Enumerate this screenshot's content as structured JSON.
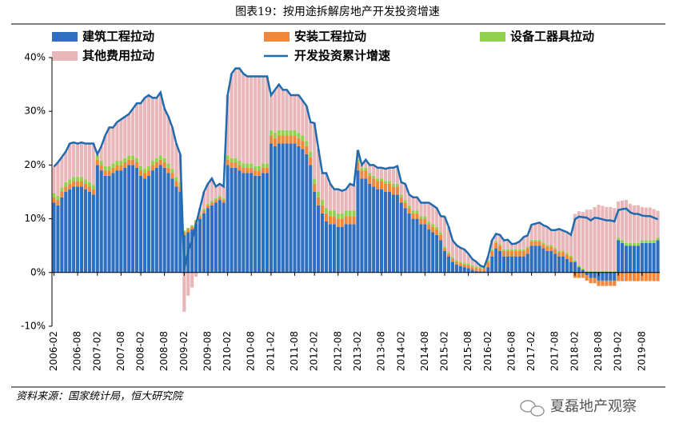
{
  "chart_data": {
    "type": "bar",
    "stacked": true,
    "title": "图表19：按用途拆解房地产开发投资增速",
    "source": "资料来源：国家统计局，恒大研究院",
    "watermark": "夏磊地产观察",
    "categories": [
      "2006-02",
      null,
      null,
      null,
      null,
      null,
      "2006-08",
      null,
      null,
      null,
      null,
      "2007-02",
      null,
      null,
      null,
      null,
      null,
      "2007-08",
      null,
      null,
      null,
      null,
      "2008-02",
      null,
      null,
      null,
      null,
      null,
      "2008-08",
      null,
      null,
      null,
      null,
      "2009-02",
      null,
      null,
      null,
      null,
      null,
      "2009-08",
      null,
      null,
      null,
      null,
      "2010-02",
      null,
      null,
      null,
      null,
      null,
      "2010-08",
      null,
      null,
      null,
      null,
      "2011-02",
      null,
      null,
      null,
      null,
      null,
      "2011-08",
      null,
      null,
      null,
      null,
      "2012-02",
      null,
      null,
      null,
      null,
      null,
      "2012-08",
      null,
      null,
      null,
      null,
      "2013-02",
      null,
      null,
      null,
      null,
      null,
      "2013-08",
      null,
      null,
      null,
      null,
      "2014-02",
      null,
      null,
      null,
      null,
      null,
      "2014-08",
      null,
      null,
      null,
      null,
      "2015-02",
      null,
      null,
      null,
      null,
      null,
      "2015-08",
      null,
      null,
      null,
      null,
      "2016-02",
      null,
      null,
      null,
      null,
      null,
      "2016-08",
      null,
      null,
      null,
      null,
      "2017-02",
      null,
      null,
      null,
      null,
      null,
      "2017-08",
      null,
      null,
      null,
      null,
      "2018-02",
      null,
      null,
      null,
      null,
      null,
      "2018-08",
      null,
      null,
      null,
      null,
      "2019-02",
      null,
      null,
      null,
      null,
      null,
      "2019-08",
      null,
      null,
      null,
      null
    ],
    "ylim": [
      -10,
      40
    ],
    "yticks": [
      {
        "value": -10,
        "label": "-10%"
      },
      {
        "value": 0,
        "label": "0%"
      },
      {
        "value": 10,
        "label": "10%"
      },
      {
        "value": 20,
        "label": "20%"
      },
      {
        "value": 30,
        "label": "30%"
      },
      {
        "value": 40,
        "label": "40%"
      }
    ],
    "grid": false,
    "series": [
      {
        "name": "建筑工程拉动",
        "type": "bar",
        "color": "#2f6fc0",
        "values": [
          13,
          12.5,
          14,
          15,
          15.5,
          16,
          16,
          16,
          15.5,
          15,
          14.5,
          20,
          19,
          18,
          18,
          18.5,
          19,
          19,
          19.5,
          20,
          20,
          19.5,
          18,
          17.5,
          18,
          19,
          19.5,
          20,
          19.5,
          18.5,
          17.5,
          16,
          15,
          7,
          7.5,
          8,
          9,
          10,
          11,
          12,
          12.5,
          13,
          13.5,
          13,
          20,
          19.5,
          19.5,
          19,
          18.5,
          18.5,
          18.5,
          18,
          18,
          18.5,
          18.5,
          24,
          23.5,
          24,
          24,
          24,
          24,
          24,
          23.5,
          23,
          22,
          20,
          15,
          12.5,
          11,
          9.5,
          9,
          9,
          8.5,
          8.5,
          9,
          9,
          9,
          19,
          17.5,
          17.5,
          16.5,
          16,
          15.5,
          15.5,
          15,
          15,
          14.5,
          14.5,
          13,
          12,
          11,
          10,
          10,
          9,
          9,
          8,
          7.5,
          7,
          6,
          4,
          3,
          2,
          1.5,
          1.2,
          1,
          0.8,
          0.5,
          0.3,
          0.2,
          0.2,
          1,
          3,
          4.5,
          4,
          3,
          3,
          3,
          3,
          3,
          3,
          3.5,
          5,
          5,
          5,
          4.5,
          4,
          4,
          3.5,
          3,
          3,
          2.5,
          2,
          2,
          1,
          0.5,
          -0.5,
          -1,
          -1,
          -1.5,
          -1.5,
          -1.5,
          -1.5,
          -1.5,
          6,
          5.5,
          5,
          5,
          5,
          5,
          5.5,
          5.5,
          5.5,
          5.5,
          6
        ]
      },
      {
        "name": "安装工程拉动",
        "type": "bar",
        "color": "#f0873a",
        "values": [
          1,
          1,
          1,
          1,
          1,
          1,
          1,
          1,
          1,
          1,
          1,
          1,
          1,
          1,
          1,
          1,
          1,
          1,
          1,
          1,
          1,
          1,
          1,
          1,
          1,
          1,
          1,
          1,
          1,
          1,
          1,
          1,
          1,
          0.5,
          0.5,
          0.5,
          0.5,
          0.5,
          0.5,
          0.5,
          0.5,
          0.5,
          0.5,
          0.5,
          1,
          1,
          1,
          1,
          1,
          1,
          1,
          1,
          1,
          1,
          1,
          1.5,
          1.5,
          1.5,
          1.5,
          1.5,
          1.5,
          1.5,
          1.5,
          1.5,
          1.5,
          1.5,
          1.5,
          1.5,
          1.5,
          1.5,
          1.5,
          1.5,
          1.5,
          1.5,
          1.5,
          1.5,
          1.5,
          1.5,
          1.5,
          1.5,
          1.5,
          1.5,
          1.5,
          1.5,
          1.5,
          1.5,
          1.5,
          1.5,
          1,
          1,
          1,
          1,
          1,
          1,
          1,
          1,
          1,
          1,
          1,
          0.5,
          0.5,
          0.5,
          0.5,
          0.5,
          0.5,
          0.5,
          0.5,
          0.5,
          0.5,
          0.5,
          1,
          1,
          1,
          1,
          1,
          1,
          1,
          1,
          1,
          1,
          1,
          0.8,
          0.8,
          0.8,
          0.8,
          0.8,
          0.8,
          0.8,
          0.8,
          0.8,
          0.8,
          0.8,
          -1,
          -1,
          -1,
          -1,
          -1,
          -1,
          -1,
          -1,
          -1,
          -1,
          -1,
          -1.6,
          -1.6,
          -1.6,
          -1.6,
          -1.6,
          -1.6,
          -1.6,
          -1.6,
          -1.6,
          -1.6,
          -1.6
        ]
      },
      {
        "name": "设备工器具拉动",
        "type": "bar",
        "color": "#92d050",
        "values": [
          0.8,
          0.8,
          0.8,
          0.8,
          0.8,
          0.8,
          0.8,
          0.8,
          0.8,
          0.8,
          0.8,
          0.8,
          0.8,
          0.8,
          0.8,
          0.8,
          0.8,
          0.8,
          0.8,
          0.8,
          0.8,
          0.8,
          0.8,
          0.8,
          0.8,
          0.8,
          0.8,
          0.8,
          0.8,
          0.8,
          0.8,
          0.8,
          0.8,
          0.3,
          0.3,
          0.3,
          0.3,
          0.3,
          0.3,
          0.3,
          0.3,
          0.3,
          0.3,
          0.3,
          0.8,
          0.8,
          0.8,
          0.8,
          0.8,
          0.8,
          0.8,
          0.8,
          0.8,
          0.8,
          0.8,
          1,
          1,
          1,
          1,
          1,
          1,
          1,
          1,
          1,
          1,
          1,
          1,
          1,
          1,
          1,
          1,
          1,
          1,
          1,
          1,
          1,
          1,
          0.5,
          0.5,
          0.5,
          0.5,
          0.5,
          0.5,
          0.5,
          0.5,
          0.5,
          0.5,
          0.5,
          0.5,
          0.5,
          0.5,
          0.5,
          0.5,
          0.5,
          0.5,
          0.5,
          0.5,
          0.5,
          0.5,
          0.3,
          0.3,
          0.3,
          0.3,
          0.3,
          0.3,
          0.3,
          0.3,
          0.3,
          0.3,
          0.3,
          0.3,
          0.3,
          0.3,
          0.3,
          0.3,
          0.3,
          0.3,
          0.3,
          0.3,
          0.3,
          0.3,
          0.3,
          0.3,
          0.3,
          0.3,
          0.3,
          0.3,
          0.3,
          0.3,
          0.3,
          0.3,
          0.3,
          0.3,
          0.3,
          0.3,
          0.3,
          0.3,
          0.3,
          0.3,
          0.3,
          0.3,
          0.3,
          0.3,
          0.5,
          0.5,
          0.5,
          0.5,
          0.5,
          0.5,
          0.5,
          0.5,
          0.5,
          0.5,
          0.5
        ]
      },
      {
        "name": "其他费用拉动",
        "type": "bar",
        "color": "#e9b6b9",
        "values": [
          4.9,
          6.2,
          5.7,
          5.7,
          6.7,
          6.4,
          6.2,
          6.4,
          6.7,
          7.2,
          7.7,
          0.2,
          2.7,
          5.7,
          7.2,
          6.7,
          7.2,
          7.7,
          7.7,
          7.7,
          8.7,
          10.2,
          11.7,
          13.2,
          13.2,
          11.7,
          11.2,
          11.7,
          9.2,
          8.7,
          7.7,
          6.2,
          5.2,
          -7.3,
          -4.3,
          -2.8,
          -0.8,
          1.2,
          3.2,
          3.7,
          4.2,
          2.2,
          2.2,
          2.2,
          11.2,
          15.7,
          16.7,
          17.2,
          16.7,
          16.2,
          16.2,
          16.7,
          16.7,
          16.2,
          16.2,
          6.5,
          8,
          8.5,
          7.5,
          7.5,
          6.5,
          6.5,
          7,
          6.5,
          6.5,
          5.5,
          10.3,
          8,
          5,
          6.5,
          5,
          4,
          4.5,
          4.2,
          4,
          5,
          4.7,
          1.8,
          0.5,
          1.5,
          1.5,
          2,
          2,
          2,
          2.3,
          2.5,
          3,
          3.3,
          2.3,
          3,
          2,
          2.5,
          2.5,
          2.5,
          2.5,
          3.5,
          3.5,
          3.5,
          3,
          5.6,
          4.7,
          3.2,
          2.8,
          2.6,
          2.5,
          1.9,
          1.2,
          0.9,
          0.3,
          0,
          0.7,
          1.7,
          1.4,
          1.7,
          1.7,
          1.8,
          1,
          1.1,
          1.5,
          2.3,
          2.1,
          2.8,
          3,
          3.2,
          3.2,
          3.4,
          2.8,
          3.3,
          4,
          3.7,
          3.9,
          3.9,
          8.6,
          10.1,
          10.5,
          11.4,
          11.4,
          11.9,
          12.3,
          12.1,
          11.9,
          11.9,
          11.7,
          6.7,
          7.4,
          8,
          7.3,
          7,
          7,
          6.2,
          6.1,
          6.1,
          5.8,
          5
        ]
      },
      {
        "name": "开发投资累计增速",
        "type": "line",
        "color": "#1f6bb0",
        "values": [
          19.7,
          20.5,
          21.5,
          22.5,
          24,
          24.2,
          24,
          24.2,
          24,
          24,
          24,
          22,
          23.5,
          25.5,
          27,
          27,
          28,
          28.5,
          29,
          29.5,
          30.5,
          31.5,
          31.5,
          32.5,
          33,
          32.5,
          32.5,
          33.5,
          30.5,
          29,
          27,
          24,
          22,
          0.5,
          4,
          6,
          9,
          12,
          15,
          16.5,
          17.5,
          16,
          16.5,
          16,
          33,
          37,
          38,
          38,
          37,
          36.5,
          36.5,
          36.5,
          36.5,
          36.5,
          36.5,
          33,
          34,
          35,
          34,
          34,
          33,
          33,
          33,
          32,
          31,
          28,
          27.8,
          23,
          18.5,
          18.5,
          16.5,
          15.5,
          15.5,
          15.2,
          15.5,
          16.5,
          16.2,
          22.8,
          20,
          21,
          20,
          20,
          19.5,
          19.5,
          19.3,
          19.5,
          19.5,
          19.8,
          16.8,
          16.5,
          14.5,
          14,
          14,
          13,
          13,
          13,
          12.5,
          12,
          10.5,
          10.4,
          8.5,
          6,
          5.1,
          4.6,
          4.3,
          3.5,
          2.5,
          2,
          1.3,
          1,
          3,
          6,
          7.2,
          7,
          6,
          6.1,
          5.3,
          5.4,
          5.8,
          6.6,
          6.9,
          8.9,
          9.1,
          9.3,
          8.8,
          8.5,
          7.9,
          7.9,
          8.1,
          7.8,
          7.5,
          7,
          9.9,
          10.4,
          10.3,
          10.2,
          9.7,
          10.2,
          10.1,
          9.9,
          9.7,
          9.7,
          9.5,
          11.6,
          11.8,
          11.9,
          11.2,
          10.9,
          10.9,
          10.6,
          10.5,
          10.5,
          10.2,
          9.9
        ]
      }
    ]
  }
}
